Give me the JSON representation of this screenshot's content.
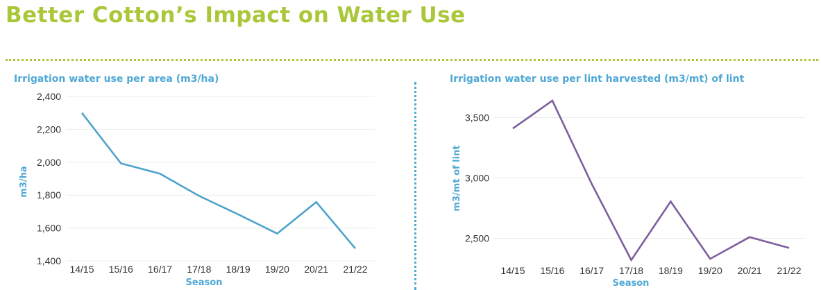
{
  "page": {
    "title": "Better Cotton’s Impact on Water Use",
    "title_color": "#a8c83a",
    "divider_color": "#a8c83a",
    "accent_color": "#4fa8d6"
  },
  "chart_data": [
    {
      "type": "line",
      "title": "Irrigation water use per area (m3/ha)",
      "xlabel": "Season",
      "ylabel": "m3/ha",
      "categories": [
        "14/15",
        "15/16",
        "16/17",
        "17/18",
        "18/19",
        "19/20",
        "20/21",
        "21/22"
      ],
      "series": [
        {
          "values": [
            2300,
            1993,
            1930,
            1795,
            1683,
            1566,
            1758,
            1475
          ],
          "color": "#4da3cc"
        }
      ],
      "ylim": [
        1400,
        2400
      ],
      "yticks": [
        1400,
        1600,
        1800,
        2000,
        2200,
        2400
      ],
      "ytick_labels": [
        "1,400",
        "1,600",
        "1,800",
        "2,000",
        "2,200",
        "2,400"
      ],
      "grid": true,
      "title_color": "#4fa8d6",
      "label_color": "#4fa8d6"
    },
    {
      "type": "line",
      "title": "Irrigation water use per lint harvested (m3/mt) of lint",
      "xlabel": "Season",
      "ylabel": "m3/mt of lint",
      "categories": [
        "14/15",
        "15/16",
        "16/17",
        "17/18",
        "18/19",
        "19/20",
        "20/21",
        "21/22"
      ],
      "series": [
        {
          "values": [
            3410,
            3640,
            2950,
            2320,
            2805,
            2330,
            2510,
            2420
          ],
          "color": "#7b5e9e"
        }
      ],
      "ylim": [
        2250,
        3750
      ],
      "yticks": [
        2500,
        3000,
        3500
      ],
      "ytick_labels": [
        "2,500",
        "3,000",
        "3,500"
      ],
      "grid": true,
      "title_color": "#4fa8d6",
      "label_color": "#4fa8d6"
    }
  ]
}
